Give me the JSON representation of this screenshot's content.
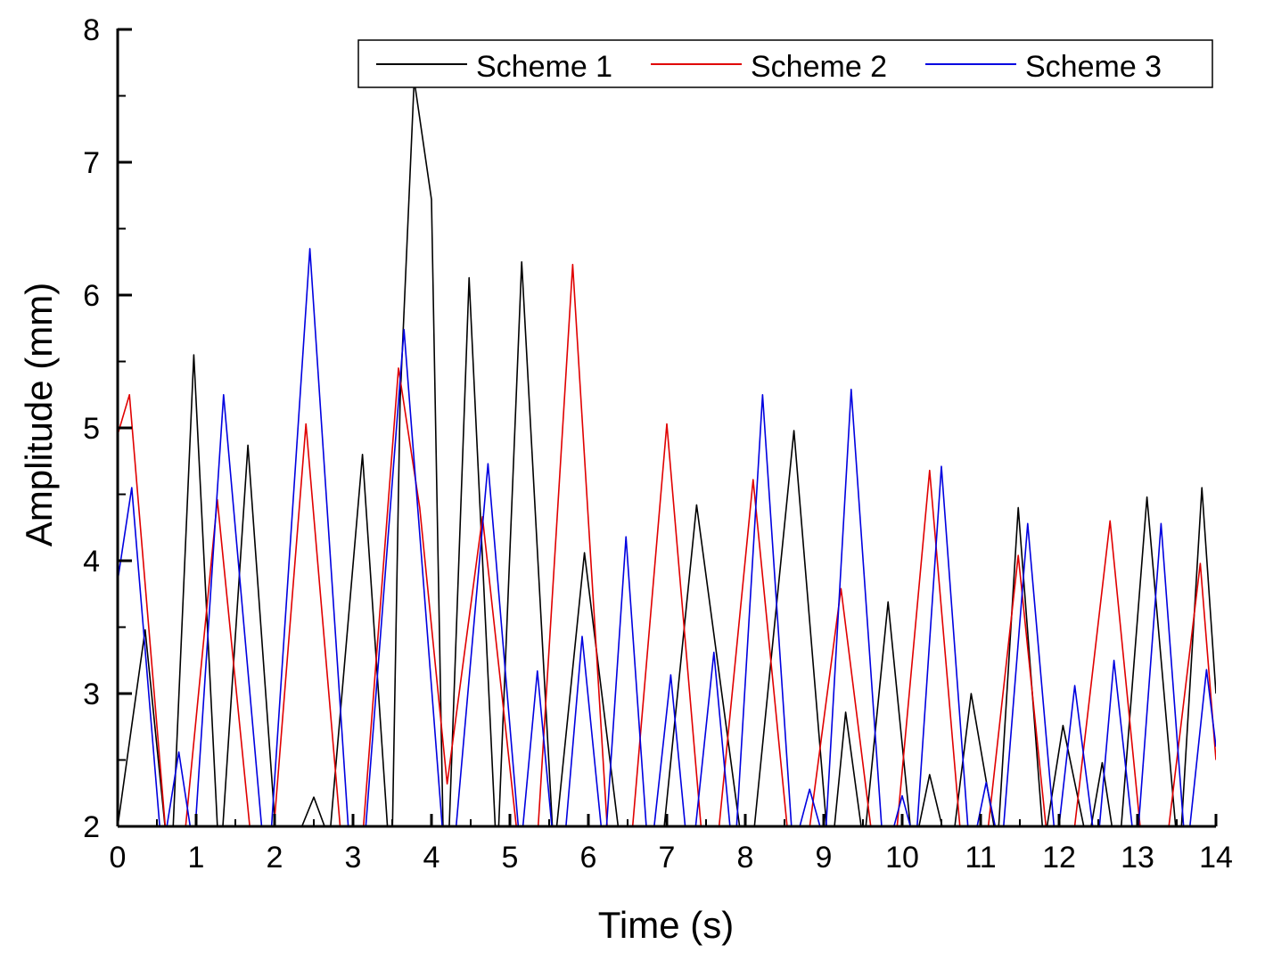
{
  "chart_data": {
    "type": "line",
    "title": "",
    "xlabel": "Time (s)",
    "ylabel": "Amplitude (mm)",
    "xlim": [
      0,
      14
    ],
    "ylim": [
      2,
      8
    ],
    "xticks": [
      "0",
      "1",
      "2",
      "3",
      "4",
      "5",
      "6",
      "7",
      "8",
      "9",
      "10",
      "11",
      "12",
      "13",
      "14"
    ],
    "yticks": [
      "2",
      "3",
      "4",
      "5",
      "6",
      "7",
      "8"
    ],
    "grid": false,
    "legend_position": "top-right",
    "series": [
      {
        "name": "Scheme 1",
        "color": "#000000",
        "points": [
          [
            0.0,
            2.0
          ],
          [
            0.35,
            3.48
          ],
          [
            0.62,
            1.9
          ],
          [
            0.7,
            1.9
          ],
          [
            0.97,
            5.55
          ],
          [
            1.28,
            1.9
          ],
          [
            1.33,
            1.9
          ],
          [
            1.66,
            4.87
          ],
          [
            2.02,
            1.9
          ],
          [
            2.28,
            1.9
          ],
          [
            2.5,
            2.22
          ],
          [
            2.7,
            1.9
          ],
          [
            3.12,
            4.8
          ],
          [
            3.45,
            1.9
          ],
          [
            3.5,
            1.9
          ],
          [
            3.6,
            5.2
          ],
          [
            3.78,
            7.62
          ],
          [
            4.0,
            6.72
          ],
          [
            4.15,
            1.9
          ],
          [
            4.22,
            1.9
          ],
          [
            4.48,
            6.13
          ],
          [
            4.82,
            1.9
          ],
          [
            4.85,
            1.9
          ],
          [
            5.15,
            6.25
          ],
          [
            5.55,
            1.9
          ],
          [
            5.58,
            1.9
          ],
          [
            5.95,
            4.06
          ],
          [
            6.4,
            1.9
          ],
          [
            6.95,
            1.9
          ],
          [
            7.38,
            4.42
          ],
          [
            7.95,
            1.9
          ],
          [
            8.1,
            1.9
          ],
          [
            8.62,
            4.98
          ],
          [
            9.05,
            1.9
          ],
          [
            9.12,
            1.9
          ],
          [
            9.28,
            2.86
          ],
          [
            9.5,
            1.9
          ],
          [
            9.52,
            1.9
          ],
          [
            9.82,
            3.69
          ],
          [
            10.12,
            1.9
          ],
          [
            10.18,
            1.9
          ],
          [
            10.35,
            2.39
          ],
          [
            10.55,
            1.9
          ],
          [
            10.65,
            1.9
          ],
          [
            10.88,
            3.0
          ],
          [
            11.2,
            1.9
          ],
          [
            11.22,
            1.9
          ],
          [
            11.48,
            4.4
          ],
          [
            11.8,
            1.9
          ],
          [
            11.82,
            1.9
          ],
          [
            12.05,
            2.76
          ],
          [
            12.35,
            1.9
          ],
          [
            12.38,
            1.9
          ],
          [
            12.55,
            2.48
          ],
          [
            12.7,
            1.9
          ],
          [
            12.78,
            1.9
          ],
          [
            13.12,
            4.48
          ],
          [
            13.5,
            1.9
          ],
          [
            13.55,
            1.9
          ],
          [
            13.82,
            4.55
          ],
          [
            14.0,
            3.0
          ]
        ]
      },
      {
        "name": "Scheme 2",
        "color": "#e00000",
        "points": [
          [
            0.0,
            4.95
          ],
          [
            0.15,
            5.25
          ],
          [
            0.62,
            1.9
          ],
          [
            0.85,
            1.9
          ],
          [
            1.27,
            4.46
          ],
          [
            1.7,
            1.9
          ],
          [
            1.98,
            1.9
          ],
          [
            2.4,
            5.03
          ],
          [
            2.85,
            1.9
          ],
          [
            3.12,
            1.9
          ],
          [
            3.58,
            5.45
          ],
          [
            3.85,
            4.4
          ],
          [
            4.2,
            2.32
          ],
          [
            4.65,
            4.33
          ],
          [
            5.1,
            1.9
          ],
          [
            5.35,
            1.9
          ],
          [
            5.8,
            6.23
          ],
          [
            6.25,
            1.9
          ],
          [
            6.55,
            1.9
          ],
          [
            7.0,
            5.03
          ],
          [
            7.45,
            1.9
          ],
          [
            7.65,
            1.9
          ],
          [
            8.1,
            4.61
          ],
          [
            8.55,
            1.9
          ],
          [
            8.8,
            1.9
          ],
          [
            9.22,
            3.79
          ],
          [
            9.62,
            1.9
          ],
          [
            9.92,
            1.9
          ],
          [
            10.35,
            4.68
          ],
          [
            10.75,
            1.9
          ],
          [
            11.08,
            1.9
          ],
          [
            11.48,
            4.04
          ],
          [
            11.85,
            1.9
          ],
          [
            12.18,
            1.9
          ],
          [
            12.65,
            4.3
          ],
          [
            13.05,
            1.9
          ],
          [
            13.38,
            1.9
          ],
          [
            13.8,
            3.98
          ],
          [
            14.0,
            2.5
          ]
        ]
      },
      {
        "name": "Scheme 3",
        "color": "#0000e0",
        "points": [
          [
            0.0,
            3.85
          ],
          [
            0.18,
            4.55
          ],
          [
            0.55,
            1.9
          ],
          [
            0.6,
            1.9
          ],
          [
            0.78,
            2.56
          ],
          [
            0.95,
            1.9
          ],
          [
            0.98,
            1.9
          ],
          [
            1.35,
            5.25
          ],
          [
            1.85,
            1.9
          ],
          [
            1.95,
            1.9
          ],
          [
            2.45,
            6.35
          ],
          [
            2.95,
            1.9
          ],
          [
            3.15,
            1.9
          ],
          [
            3.65,
            5.74
          ],
          [
            4.15,
            1.9
          ],
          [
            4.3,
            1.9
          ],
          [
            4.72,
            4.73
          ],
          [
            5.12,
            1.9
          ],
          [
            5.15,
            1.9
          ],
          [
            5.35,
            3.17
          ],
          [
            5.55,
            1.9
          ],
          [
            5.7,
            1.9
          ],
          [
            5.92,
            3.43
          ],
          [
            6.18,
            1.9
          ],
          [
            6.22,
            1.9
          ],
          [
            6.48,
            4.18
          ],
          [
            6.75,
            1.9
          ],
          [
            6.82,
            1.9
          ],
          [
            7.05,
            3.14
          ],
          [
            7.25,
            1.9
          ],
          [
            7.35,
            1.9
          ],
          [
            7.6,
            3.31
          ],
          [
            7.82,
            1.9
          ],
          [
            7.88,
            1.9
          ],
          [
            8.22,
            5.25
          ],
          [
            8.6,
            1.9
          ],
          [
            8.65,
            1.9
          ],
          [
            8.82,
            2.28
          ],
          [
            9.0,
            1.9
          ],
          [
            9.02,
            1.9
          ],
          [
            9.35,
            5.29
          ],
          [
            9.75,
            1.9
          ],
          [
            9.85,
            1.9
          ],
          [
            10.0,
            2.23
          ],
          [
            10.15,
            1.9
          ],
          [
            10.18,
            1.9
          ],
          [
            10.5,
            4.71
          ],
          [
            10.85,
            1.9
          ],
          [
            10.92,
            1.9
          ],
          [
            11.07,
            2.33
          ],
          [
            11.22,
            1.9
          ],
          [
            11.28,
            1.9
          ],
          [
            11.6,
            4.28
          ],
          [
            11.95,
            1.9
          ],
          [
            11.98,
            1.9
          ],
          [
            12.2,
            3.06
          ],
          [
            12.45,
            1.9
          ],
          [
            12.5,
            1.9
          ],
          [
            12.7,
            3.25
          ],
          [
            12.95,
            1.9
          ],
          [
            13.0,
            1.9
          ],
          [
            13.3,
            4.28
          ],
          [
            13.6,
            1.9
          ],
          [
            13.65,
            1.9
          ],
          [
            13.88,
            3.18
          ],
          [
            14.0,
            2.6
          ]
        ]
      }
    ]
  }
}
